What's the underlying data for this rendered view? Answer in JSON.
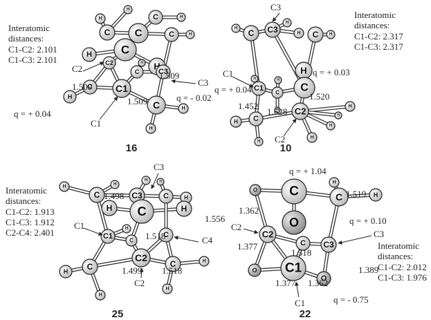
{
  "panels": [
    {
      "compound": "16",
      "heading": [
        "Interatomic",
        "distances:"
      ],
      "distances": [
        "C1-C2: 2.101",
        "C1-C3: 2.101"
      ],
      "annotations": [
        "C2",
        "1.509",
        "1.509",
        "C3",
        "q = - 0.02",
        "q = + 0.04",
        "1.509",
        "C1"
      ],
      "atoms": [
        "H",
        "H",
        "C",
        "C",
        "H",
        "C",
        "C",
        "H",
        "H",
        "C2",
        "C",
        "H",
        "C3",
        "C",
        "H",
        "C",
        "H",
        "C1",
        "C",
        "H",
        "H"
      ]
    },
    {
      "compound": "10",
      "heading": [
        "Interatomic",
        "distances:"
      ],
      "distances": [
        "C1-C2: 2.317",
        "C1-C3: 2.317"
      ],
      "annotations": [
        "C3",
        "C1",
        "q = + 0.04",
        "q = + 0.03",
        "1.520",
        "1.452",
        "1.628",
        "C2"
      ],
      "atoms": [
        "H",
        "C",
        "C3",
        "H",
        "H",
        "C",
        "H",
        "H",
        "C",
        "H",
        "C1",
        "C",
        "H",
        "C2",
        "H",
        "H",
        "H",
        "H",
        "C",
        "H",
        "H",
        "H"
      ]
    },
    {
      "compound": "25",
      "heading": [
        "Interatomic",
        "distances:"
      ],
      "distances": [
        "C1-C2: 1.913",
        "C1-C3: 1.912",
        "C2-C4: 2.401"
      ],
      "annotations": [
        "1.498",
        "C3",
        "1.556",
        "C1",
        "1.518",
        "C4",
        "1.499",
        "1.518",
        "C2"
      ],
      "atoms": [
        "H",
        "C",
        "H",
        "C3",
        "H",
        "H",
        "C",
        "H",
        "H",
        "C",
        "H",
        "C1",
        "H",
        "C",
        "C",
        "C2",
        "C",
        "H",
        "H",
        "C",
        "H",
        "H"
      ]
    },
    {
      "compound": "22",
      "heading": [
        "Interatomic",
        "distances:"
      ],
      "distances": [
        "C1-C2: 2.012",
        "C1-C3: 1.976"
      ],
      "annotations": [
        "q = + 1.04",
        "1.519",
        "q = + 0.10",
        "1.362",
        "C2",
        "C3",
        "1.377",
        "1.518",
        "1.389",
        "1.377",
        "1.362",
        "q = - 0.75",
        "C1"
      ],
      "atoms": [
        "O",
        "C",
        "H",
        "C",
        "H",
        "O",
        "C2",
        "C",
        "C3",
        "O",
        "C1",
        "O"
      ]
    }
  ]
}
